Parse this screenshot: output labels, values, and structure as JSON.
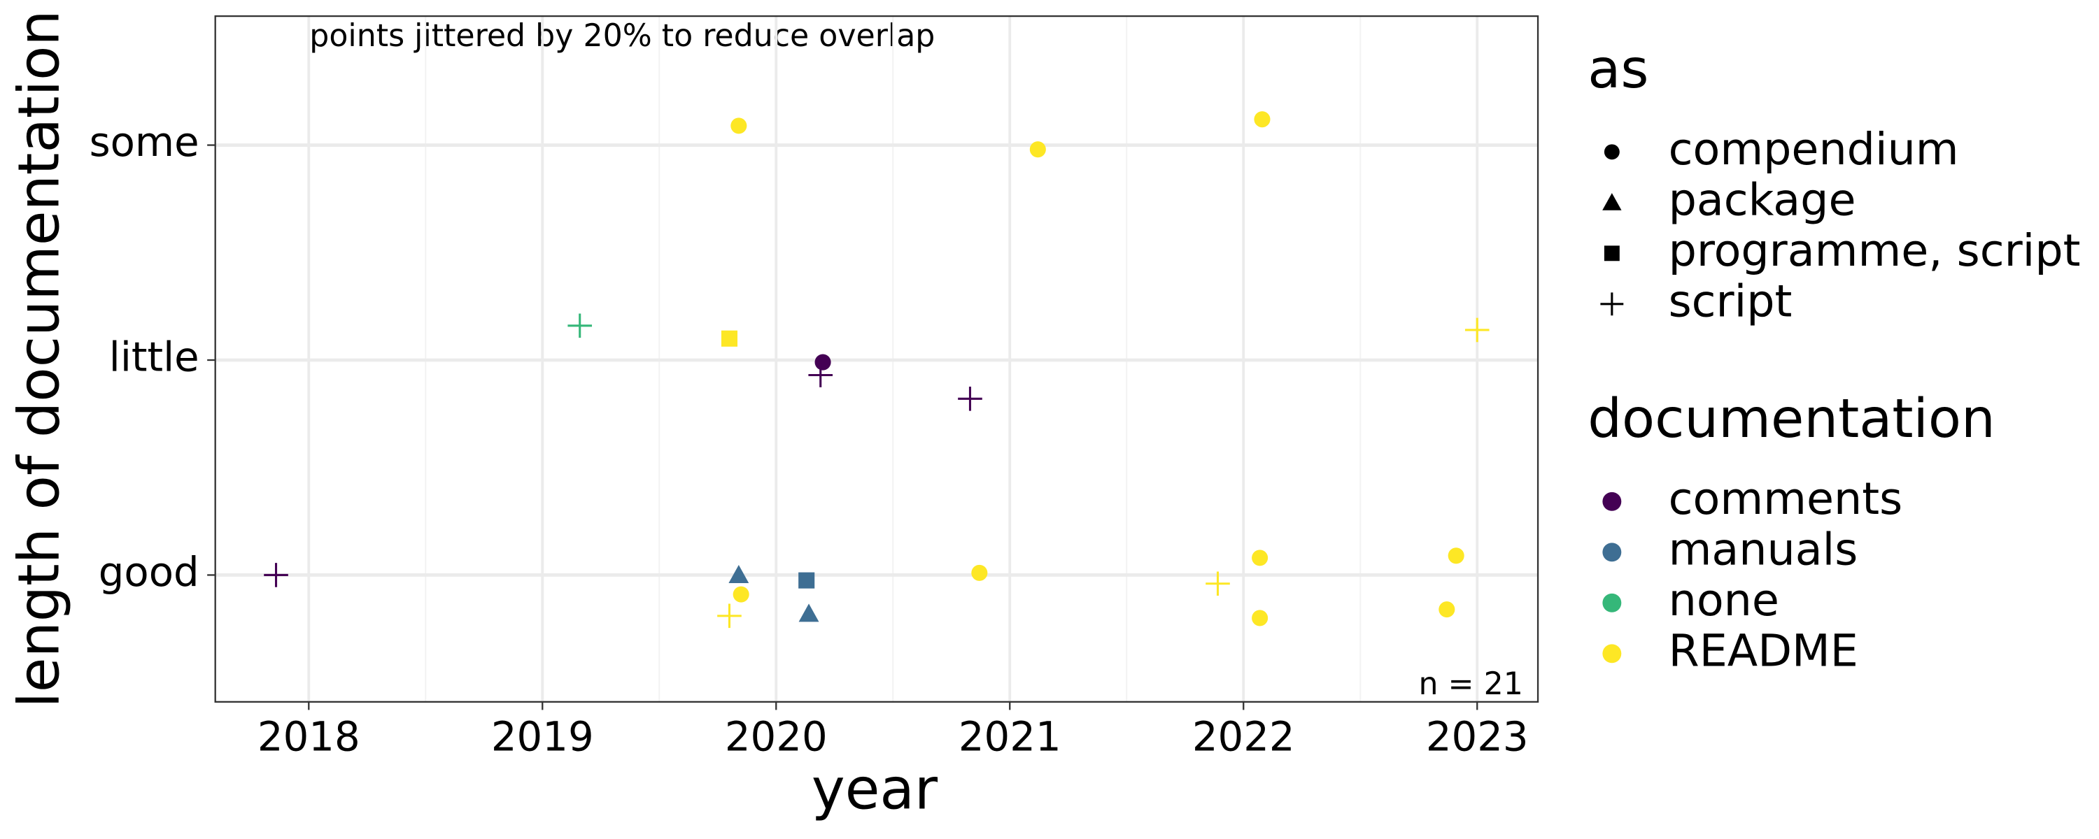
{
  "chart_data": {
    "type": "scatter",
    "x_label": "year",
    "y_label": "length of documentation",
    "annotations": [
      "points jittered by 20% to reduce overlap",
      "n = 21"
    ],
    "xlim": [
      2017.6,
      2023.26
    ],
    "xticks": [
      2018,
      2019,
      2020,
      2021,
      2022,
      2023
    ],
    "xminor": [
      2018.5,
      2019.5,
      2020.5,
      2021.5,
      2022.5
    ],
    "ylim": [
      0.41,
      3.6
    ],
    "yticks": [
      {
        "value": 1,
        "label": "good"
      },
      {
        "value": 2,
        "label": "little"
      },
      {
        "value": 3,
        "label": "some"
      }
    ],
    "grid": true,
    "shape_legend": {
      "title": "as",
      "items": [
        "compendium",
        "package",
        "programme, script",
        "script"
      ]
    },
    "color_legend_title": "documentation",
    "series": [
      {
        "name": "comments",
        "color": "#440154",
        "x": [
          2017.86,
          2020.2,
          2020.19,
          2020.83
        ],
        "values": [
          1.0,
          1.99,
          1.93,
          1.82
        ],
        "shapes": [
          "script",
          "compendium",
          "script",
          "script"
        ]
      },
      {
        "name": "manuals",
        "color": "#3E6E93",
        "x": [
          2019.84,
          2020.13,
          2020.14
        ],
        "values": [
          1.0,
          0.975,
          0.82
        ],
        "shapes": [
          "package",
          "programme, script",
          "package"
        ]
      },
      {
        "name": "none",
        "color": "#35B779",
        "x": [
          2019.16
        ],
        "values": [
          2.16
        ],
        "shapes": [
          "script"
        ]
      },
      {
        "name": "README",
        "color": "#FDE725",
        "x": [
          2019.84,
          2021.12,
          2022.08,
          2019.8,
          2023.0,
          2019.85,
          2019.8,
          2020.87,
          2021.89,
          2022.07,
          2022.07,
          2022.91,
          2022.87
        ],
        "values": [
          3.09,
          2.98,
          3.12,
          2.1,
          2.14,
          0.91,
          0.81,
          1.01,
          0.96,
          1.08,
          0.8,
          1.09,
          0.84
        ],
        "shapes": [
          "compendium",
          "compendium",
          "compendium",
          "programme, script",
          "script",
          "compendium",
          "script",
          "compendium",
          "script",
          "compendium",
          "compendium",
          "compendium",
          "compendium"
        ]
      }
    ]
  }
}
